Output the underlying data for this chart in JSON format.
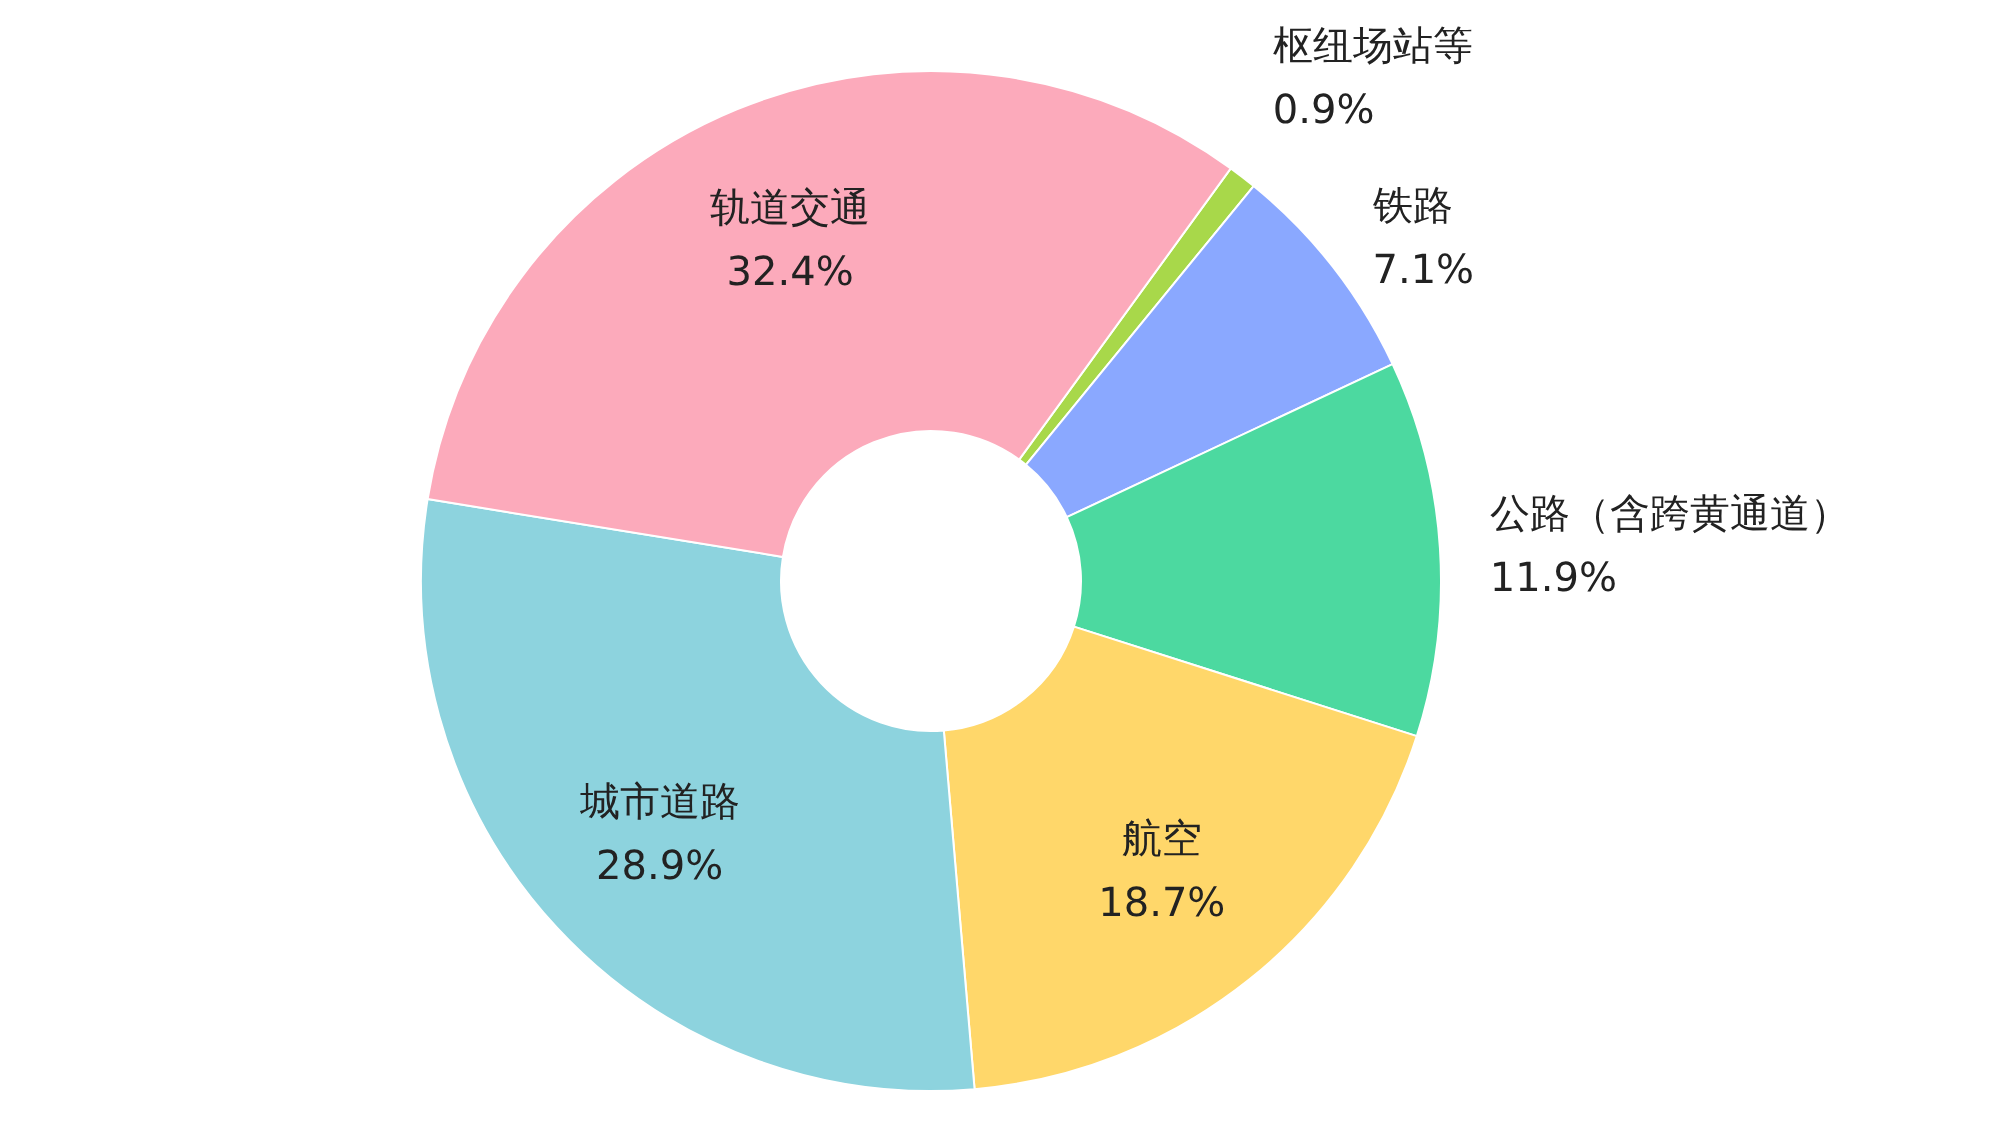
{
  "chart_data": {
    "type": "donut",
    "categories": [
      "枢纽场站等",
      "铁路",
      "公路（含跨黄通道）",
      "航空",
      "城市道路",
      "轨道交通"
    ],
    "values": [
      0.9,
      7.1,
      11.9,
      18.7,
      28.9,
      32.4
    ],
    "value_labels": [
      "0.9%",
      "7.1%",
      "11.9%",
      "18.7%",
      "28.9%",
      "32.4%"
    ],
    "colors": [
      "#a8d84a",
      "#8aa8ff",
      "#4cd9a0",
      "#ffd76a",
      "#8dd3de",
      "#fcaabb"
    ]
  }
}
